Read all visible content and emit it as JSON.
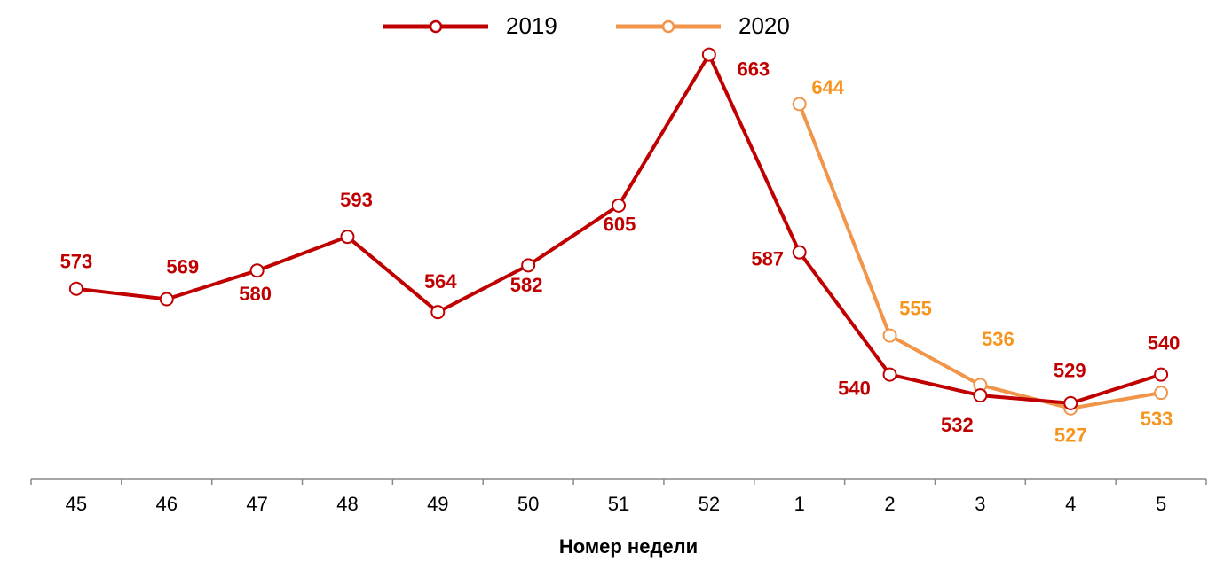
{
  "chart_data": {
    "type": "line",
    "title": "",
    "xlabel": "Номер недели",
    "ylabel": "",
    "categories": [
      "45",
      "46",
      "47",
      "48",
      "49",
      "50",
      "51",
      "52",
      "1",
      "2",
      "3",
      "4",
      "5"
    ],
    "ylim": [
      500,
      684
    ],
    "grid": false,
    "legend_placement": "top-center",
    "series": [
      {
        "name": "2019",
        "color": "#C00000",
        "label_color": "#C00000",
        "values": [
          573,
          569,
          580,
          593,
          564,
          582,
          605,
          663,
          587,
          540,
          532,
          529,
          540
        ]
      },
      {
        "name": "2020",
        "color": "#F0954A",
        "label_color": "#F7941D",
        "values": [
          null,
          null,
          null,
          null,
          null,
          null,
          null,
          null,
          644,
          555,
          536,
          527,
          533
        ]
      }
    ]
  }
}
